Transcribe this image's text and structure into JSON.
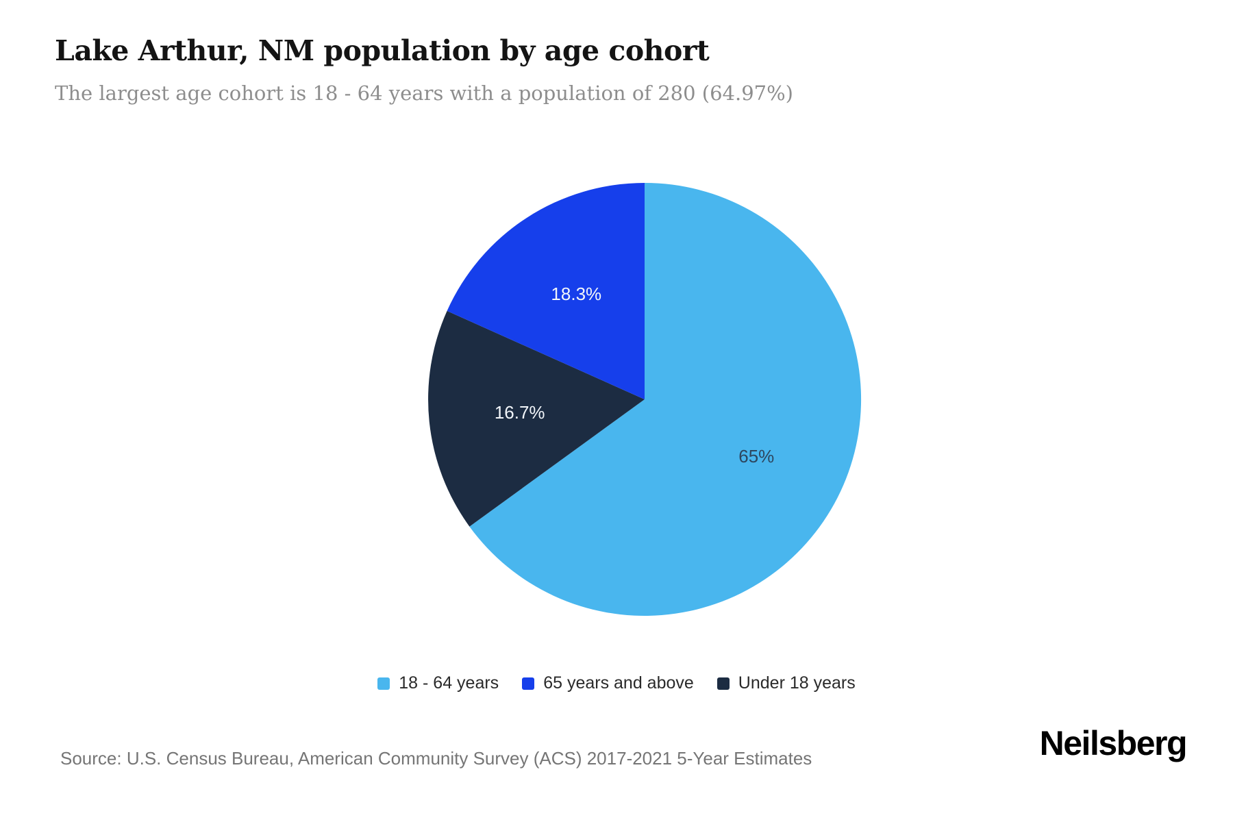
{
  "header": {
    "title": "Lake Arthur, NM population by age cohort",
    "subtitle": "The largest age cohort is 18 - 64 years with a population of 280 (64.97%)"
  },
  "chart_data": {
    "type": "pie",
    "title": "Lake Arthur, NM population by age cohort",
    "start_angle": "12-oclock",
    "direction": "clockwise",
    "largest_cohort": {
      "name": "18 - 64 years",
      "population": 280,
      "percent": 64.97
    },
    "slices": [
      {
        "category": "18 - 64 years",
        "percent": 65,
        "label": "65%",
        "color": "#49b6ee",
        "label_color": "#2d465f"
      },
      {
        "category": "Under 18 years",
        "percent": 16.7,
        "label": "16.7%",
        "color": "#1c2c42",
        "label_color": "#f2f6fa"
      },
      {
        "category": "65 years and above",
        "percent": 18.3,
        "label": "18.3%",
        "color": "#163feb",
        "label_color": "#f2f6fa"
      }
    ],
    "legend_position": "bottom",
    "legend": [
      {
        "label": "18 - 64 years",
        "color": "#49b6ee"
      },
      {
        "label": "65 years and above",
        "color": "#163feb"
      },
      {
        "label": "Under 18 years",
        "color": "#1c2c42"
      }
    ]
  },
  "footer": {
    "source": "Source: U.S. Census Bureau, American Community Survey (ACS) 2017-2021 5-Year Estimates",
    "brand": "Neilsberg"
  }
}
